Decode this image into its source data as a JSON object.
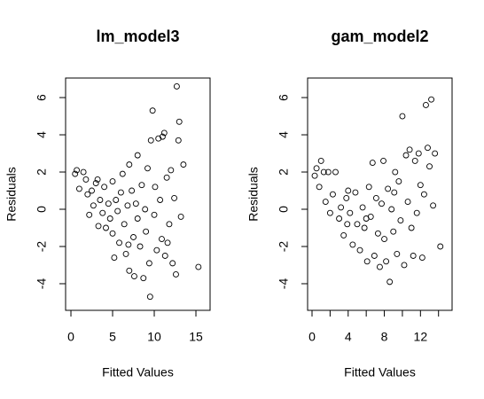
{
  "chart_data": [
    {
      "type": "scatter",
      "title": "lm_model3",
      "xlabel": "Fitted Values",
      "ylabel": "Residuals",
      "xlim": [
        -0.64,
        16.7
      ],
      "xticks": [
        0,
        5,
        10,
        15
      ],
      "ylim": [
        -5.43,
        7.05
      ],
      "yticks": [
        -4,
        -2,
        0,
        2,
        4,
        6
      ],
      "marker_color": "#000000",
      "x": [
        0.5,
        0.7,
        1,
        1.5,
        1.8,
        2,
        2.2,
        2.5,
        2.7,
        3,
        3.2,
        3.3,
        3.5,
        3.8,
        4,
        4.2,
        4.5,
        4.7,
        5,
        5,
        5.2,
        5.4,
        5.6,
        5.8,
        6,
        6.2,
        6.4,
        6.6,
        6.8,
        7,
        7,
        7.3,
        7.5,
        7.6,
        7.8,
        8,
        8,
        8.3,
        8.5,
        8.7,
        8.9,
        9,
        9.2,
        9.4,
        9.5,
        9.6,
        9.8,
        10,
        10.1,
        10.3,
        10.5,
        10.7,
        10.9,
        11,
        11.2,
        11.3,
        11.5,
        11.8,
        12,
        12.2,
        12.4,
        12.6,
        12.7,
        12.9,
        13,
        13.2,
        13.5,
        15.3,
        11.6,
        6.9
      ],
      "y": [
        1.9,
        2.1,
        1.1,
        2.0,
        1.6,
        0.8,
        -0.3,
        1.0,
        0.2,
        1.4,
        1.6,
        -0.9,
        0.5,
        -0.2,
        1.2,
        -1.0,
        0.3,
        -0.5,
        1.5,
        -1.3,
        -2.6,
        0.5,
        -0.1,
        -1.8,
        0.9,
        1.9,
        -0.8,
        -2.4,
        0.2,
        -3.3,
        2.4,
        1.0,
        -1.5,
        -3.6,
        0.3,
        2.9,
        -0.5,
        -2.0,
        1.3,
        -3.7,
        0.0,
        -1.2,
        2.2,
        -2.9,
        -4.7,
        3.7,
        5.3,
        -0.3,
        1.2,
        -2.2,
        3.8,
        0.5,
        -1.6,
        3.9,
        4.1,
        -2.5,
        1.7,
        -0.8,
        2.1,
        -2.9,
        0.6,
        -3.5,
        6.6,
        3.7,
        4.7,
        -0.4,
        2.4,
        -3.1,
        -1.8,
        -1.9
      ]
    },
    {
      "type": "scatter",
      "title": "gam_model2",
      "xlabel": "Fitted Values",
      "ylabel": "Residuals",
      "xlim": [
        -0.49,
        15.5
      ],
      "xticks": [
        0,
        4,
        8,
        12
      ],
      "xminor_ticks": [
        2,
        6,
        10,
        14
      ],
      "ylim": [
        -5.43,
        7.05
      ],
      "yticks": [
        -4,
        -2,
        0,
        2,
        4,
        6
      ],
      "marker_color": "#000000",
      "x": [
        0.3,
        0.5,
        0.8,
        1,
        1.3,
        1.5,
        1.8,
        2,
        2.3,
        2.6,
        3,
        3.2,
        3.5,
        3.8,
        4,
        4.2,
        4.5,
        4.8,
        5,
        5.3,
        5.6,
        5.8,
        6.1,
        6.3,
        6.5,
        6.7,
        6.9,
        7.1,
        7.3,
        7.5,
        7.7,
        7.9,
        8,
        8.2,
        8.4,
        8.6,
        8.8,
        9,
        9.2,
        9.4,
        9.6,
        9.8,
        10,
        10.2,
        10.4,
        10.6,
        10.8,
        11,
        11.2,
        11.4,
        11.6,
        11.8,
        12,
        12.2,
        12.4,
        12.6,
        12.8,
        13,
        13.2,
        13.4,
        13.6,
        14.2,
        3.9,
        6.0,
        9.1
      ],
      "y": [
        1.8,
        2.2,
        1.2,
        2.6,
        2.0,
        0.4,
        2.0,
        -0.2,
        0.8,
        2.0,
        -0.5,
        0.1,
        -1.4,
        0.6,
        1.0,
        -0.2,
        -1.9,
        0.9,
        -0.8,
        -2.2,
        0.1,
        -1.0,
        -2.8,
        1.2,
        -0.4,
        2.5,
        -2.5,
        0.6,
        -1.3,
        -3.1,
        0.3,
        2.6,
        -1.6,
        -2.8,
        1.1,
        -3.9,
        0.0,
        -1.2,
        2.0,
        -2.4,
        1.5,
        -0.6,
        5.0,
        -3.0,
        2.9,
        0.4,
        3.2,
        -1.0,
        -2.5,
        2.6,
        -0.2,
        3.0,
        1.3,
        -2.6,
        0.8,
        5.6,
        3.3,
        2.3,
        5.9,
        0.2,
        3.0,
        -2.0,
        -0.8,
        -0.5,
        0.9
      ]
    }
  ]
}
